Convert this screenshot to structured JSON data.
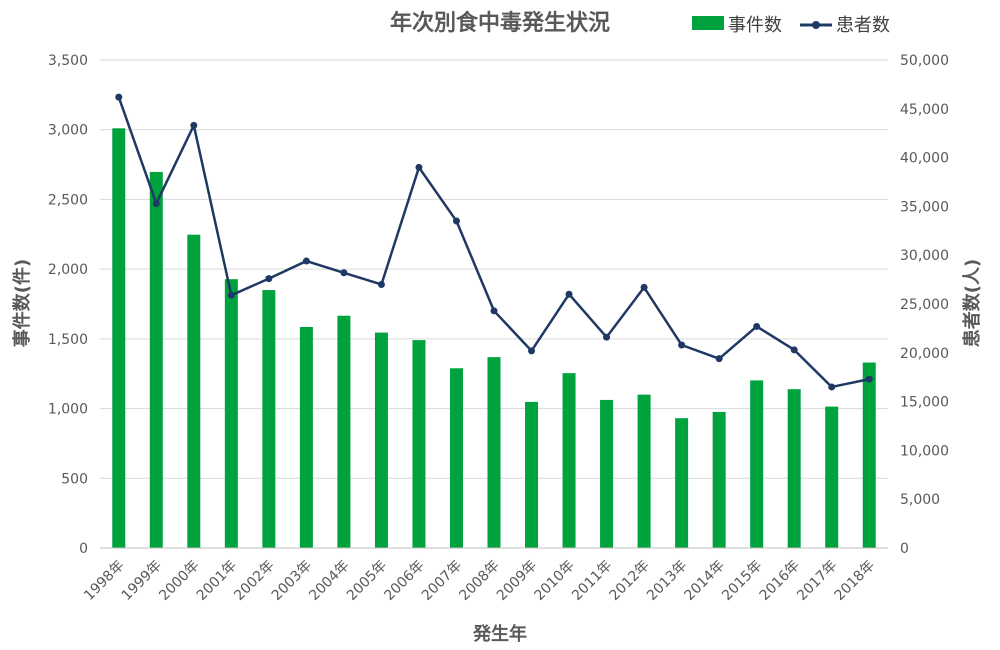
{
  "chart_data": {
    "type": "bar",
    "title": "年次別食中毒発生状況",
    "xlabel": "発生年",
    "ylabel_left": "事件数(件)",
    "ylabel_right": "患者数(人)",
    "ylim_left": [
      0,
      3500
    ],
    "ylim_right": [
      0,
      50000
    ],
    "left_ticks": [
      "0",
      "500",
      "1,000",
      "1,500",
      "2,000",
      "2,500",
      "3,000",
      "3,500"
    ],
    "right_ticks": [
      "0",
      "5,000",
      "10,000",
      "15,000",
      "20,000",
      "25,000",
      "30,000",
      "35,000",
      "40,000",
      "45,000",
      "50,000"
    ],
    "grid": true,
    "legend_position": "top-right",
    "categories": [
      "1998年",
      "1999年",
      "2000年",
      "2001年",
      "2002年",
      "2003年",
      "2004年",
      "2005年",
      "2006年",
      "2007年",
      "2008年",
      "2009年",
      "2010年",
      "2011年",
      "2012年",
      "2013年",
      "2014年",
      "2015年",
      "2016年",
      "2017年",
      "2018年"
    ],
    "series": [
      {
        "name": "事件数",
        "type": "bar",
        "axis": "left",
        "color": "#00A23E",
        "values": [
          3010,
          2697,
          2247,
          1928,
          1850,
          1585,
          1666,
          1545,
          1491,
          1289,
          1369,
          1048,
          1254,
          1062,
          1100,
          931,
          976,
          1202,
          1139,
          1014,
          1330
        ]
      },
      {
        "name": "患者数",
        "type": "line",
        "axis": "right",
        "color": "#1F3864",
        "values": [
          46200,
          35300,
          43300,
          25900,
          27600,
          29400,
          28200,
          27000,
          39000,
          33500,
          24300,
          20200,
          26000,
          21600,
          26700,
          20800,
          19400,
          22700,
          20300,
          16500,
          17300
        ]
      }
    ]
  }
}
